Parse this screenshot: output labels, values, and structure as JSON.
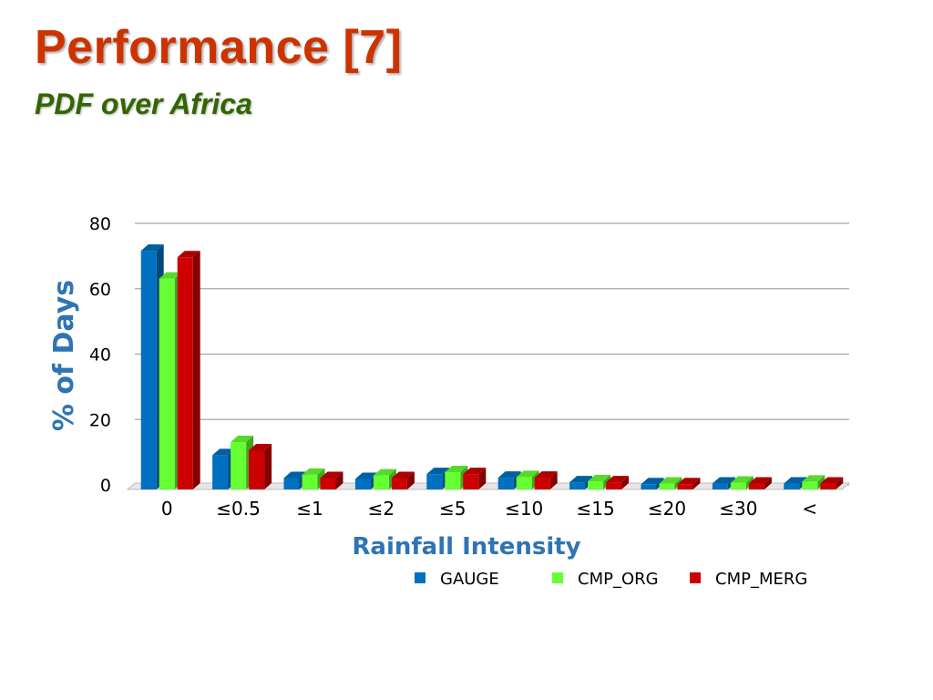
{
  "slide": {
    "title": "Performance [7]",
    "subtitle": "PDF over Africa"
  },
  "chart_data": {
    "type": "bar",
    "xlabel": "Rainfall Intensity",
    "ylabel": "% of Days",
    "ylim": [
      0,
      80
    ],
    "yticks": [
      "0",
      "20",
      "40",
      "60",
      "80"
    ],
    "grid": true,
    "legend_position": "bottom-right",
    "categories": [
      "0",
      "≤0.5",
      "≤1",
      "≤2",
      "≤5",
      "≤10",
      "≤15",
      "≤20",
      "≤30",
      "<"
    ],
    "series": [
      {
        "name": "GAUGE",
        "color": "#0070c0",
        "values": [
          73,
          10.5,
          3.5,
          3.2,
          4.7,
          3.6,
          2.2,
          1.6,
          1.8,
          1.8
        ]
      },
      {
        "name": "CMP_ORG",
        "color": "#66ff33",
        "values": [
          64.5,
          14.5,
          4.5,
          4.3,
          5.3,
          3.8,
          2.5,
          1.8,
          2.1,
          2.4
        ]
      },
      {
        "name": "CMP_MERG",
        "color": "#cc0000",
        "values": [
          71,
          12,
          3.5,
          3.5,
          4.7,
          3.6,
          2.2,
          1.6,
          1.8,
          1.8
        ]
      }
    ]
  }
}
